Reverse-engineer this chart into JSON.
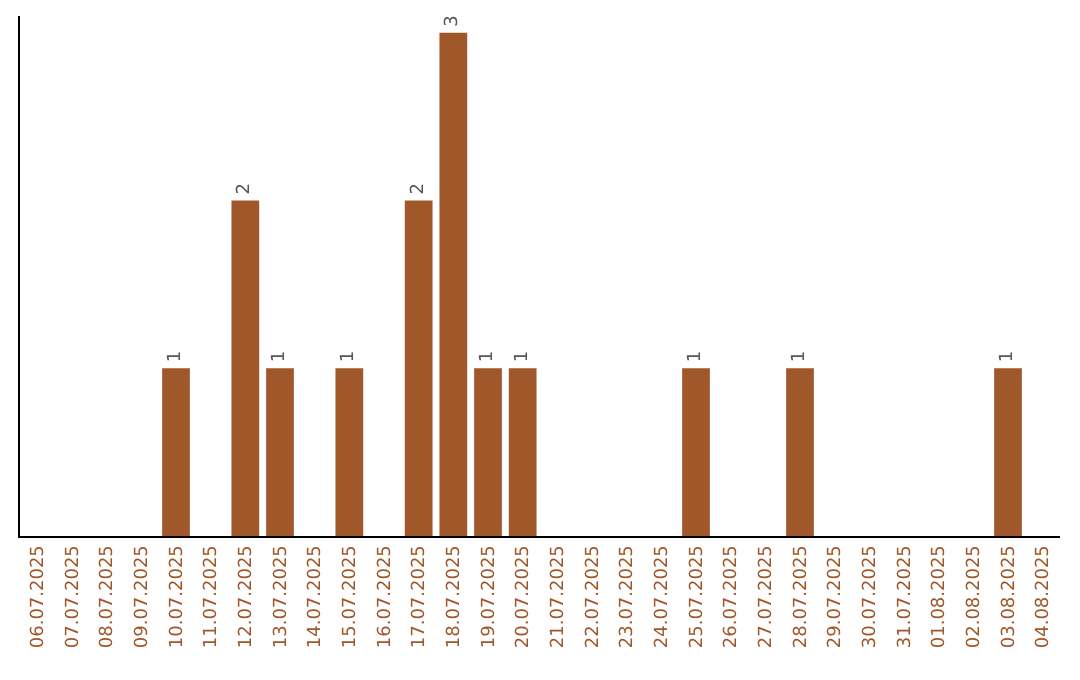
{
  "chart_data": {
    "type": "bar",
    "categories": [
      "06.07.2025",
      "07.07.2025",
      "08.07.2025",
      "09.07.2025",
      "10.07.2025",
      "11.07.2025",
      "12.07.2025",
      "13.07.2025",
      "14.07.2025",
      "15.07.2025",
      "16.07.2025",
      "17.07.2025",
      "18.07.2025",
      "19.07.2025",
      "20.07.2025",
      "21.07.2025",
      "22.07.2025",
      "23.07.2025",
      "24.07.2025",
      "25.07.2025",
      "26.07.2025",
      "27.07.2025",
      "28.07.2025",
      "29.07.2025",
      "30.07.2025",
      "31.07.2025",
      "01.08.2025",
      "02.08.2025",
      "03.08.2025",
      "04.08.2025"
    ],
    "values": [
      0,
      0,
      0,
      0,
      1,
      0,
      2,
      1,
      0,
      1,
      0,
      2,
      3,
      1,
      1,
      0,
      0,
      0,
      0,
      1,
      0,
      0,
      1,
      0,
      0,
      0,
      0,
      0,
      1,
      0
    ],
    "value_labels": [
      null,
      null,
      null,
      null,
      "1",
      null,
      "2",
      "1",
      null,
      "1",
      null,
      "2",
      "3",
      "1",
      "1",
      null,
      null,
      null,
      null,
      "1",
      null,
      null,
      "1",
      null,
      null,
      null,
      null,
      null,
      "1",
      null
    ],
    "color": "#a0572a",
    "ylim": [
      0,
      3.1
    ],
    "tick_labels": "x"
  }
}
